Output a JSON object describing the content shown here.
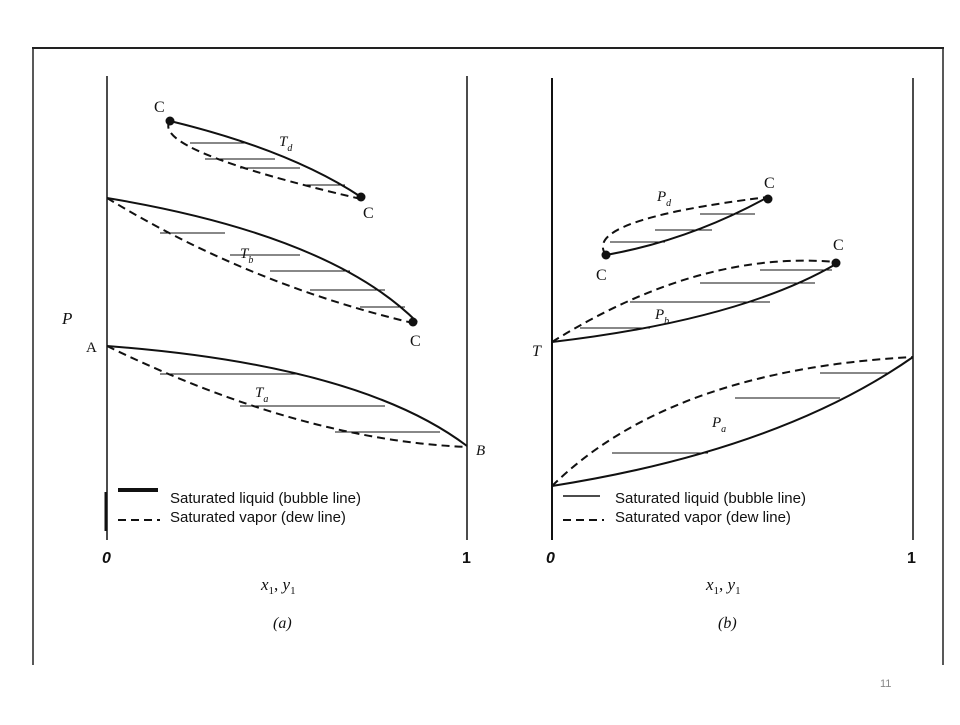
{
  "slide": {
    "page_number": "11"
  },
  "panel_a": {
    "axis_label_y": "P",
    "axis_label_x_var1": "x",
    "axis_label_x_sub1": "1",
    "axis_label_x_sep": ", ",
    "axis_label_x_var2": "y",
    "axis_label_x_sub2": "1",
    "tick_0": "0",
    "tick_1": "1",
    "caption": "(a)",
    "point_A": "A",
    "point_B": "B",
    "critical_label": "C",
    "curve_labels": {
      "d": {
        "main": "T",
        "sub": "d"
      },
      "b": {
        "main": "T",
        "sub": "b"
      },
      "a": {
        "main": "T",
        "sub": "a"
      }
    },
    "legend": {
      "liquid": "Saturated liquid (bubble line)",
      "vapor": "Saturated vapor (dew line)"
    }
  },
  "panel_b": {
    "axis_label_y": "T",
    "axis_label_x_var1": "x",
    "axis_label_x_sub1": "1",
    "axis_label_x_sep": ", ",
    "axis_label_x_var2": "y",
    "axis_label_x_sub2": "1",
    "tick_0": "0",
    "tick_1": "1",
    "caption": "(b)",
    "critical_label": "C",
    "curve_labels": {
      "d": {
        "main": "P",
        "sub": "d"
      },
      "b": {
        "main": "P",
        "sub": "b"
      },
      "a": {
        "main": "P",
        "sub": "a"
      }
    },
    "legend": {
      "liquid": "Saturated liquid (bubble line)",
      "vapor": "Saturated vapor (dew line)"
    }
  },
  "colors": {
    "ink": "#111111",
    "frame": "#222222",
    "page_num": "#888888"
  }
}
